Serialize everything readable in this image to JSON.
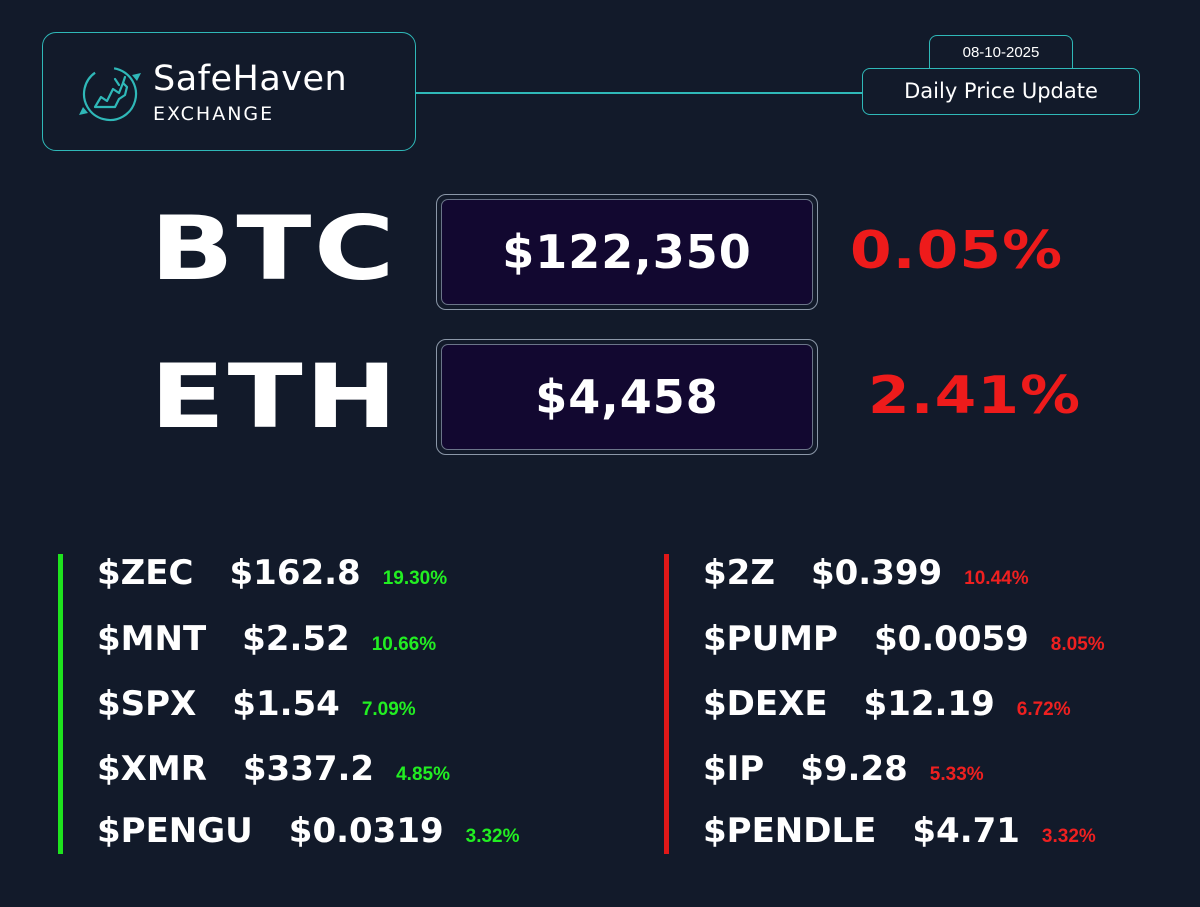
{
  "brand": {
    "name": "SafeHaven",
    "subtitle": "EXCHANGE",
    "logo_icon": "bull-circle-icon",
    "accent_color": "#2fb8b8"
  },
  "header": {
    "date": "08-10-2025",
    "title": "Daily Price Update"
  },
  "majors": [
    {
      "ticker": "BTC",
      "price": "$122,350",
      "change": "0.05%"
    },
    {
      "ticker": "ETH",
      "price": "$4,458",
      "change": "2.41%"
    }
  ],
  "gainers": {
    "color": "#22ee22",
    "items": [
      {
        "symbol": "$ZEC",
        "price": "$162.8",
        "change": "19.30%"
      },
      {
        "symbol": "$MNT",
        "price": "$2.52",
        "change": "10.66%"
      },
      {
        "symbol": "$SPX",
        "price": "$1.54",
        "change": "7.09%"
      },
      {
        "symbol": "$XMR",
        "price": "$337.2",
        "change": "4.85%"
      },
      {
        "symbol": "$PENGU",
        "price": "$0.0319",
        "change": "3.32%"
      }
    ]
  },
  "losers": {
    "color": "#ee2020",
    "items": [
      {
        "symbol": "$2Z",
        "price": "$0.399",
        "change": "10.44%"
      },
      {
        "symbol": "$PUMP",
        "price": "$0.0059",
        "change": "8.05%"
      },
      {
        "symbol": "$DEXE",
        "price": "$12.19",
        "change": "6.72%"
      },
      {
        "symbol": "$IP",
        "price": "$9.28",
        "change": "5.33%"
      },
      {
        "symbol": "$PENDLE",
        "price": "$4.71",
        "change": "3.32%"
      }
    ]
  }
}
